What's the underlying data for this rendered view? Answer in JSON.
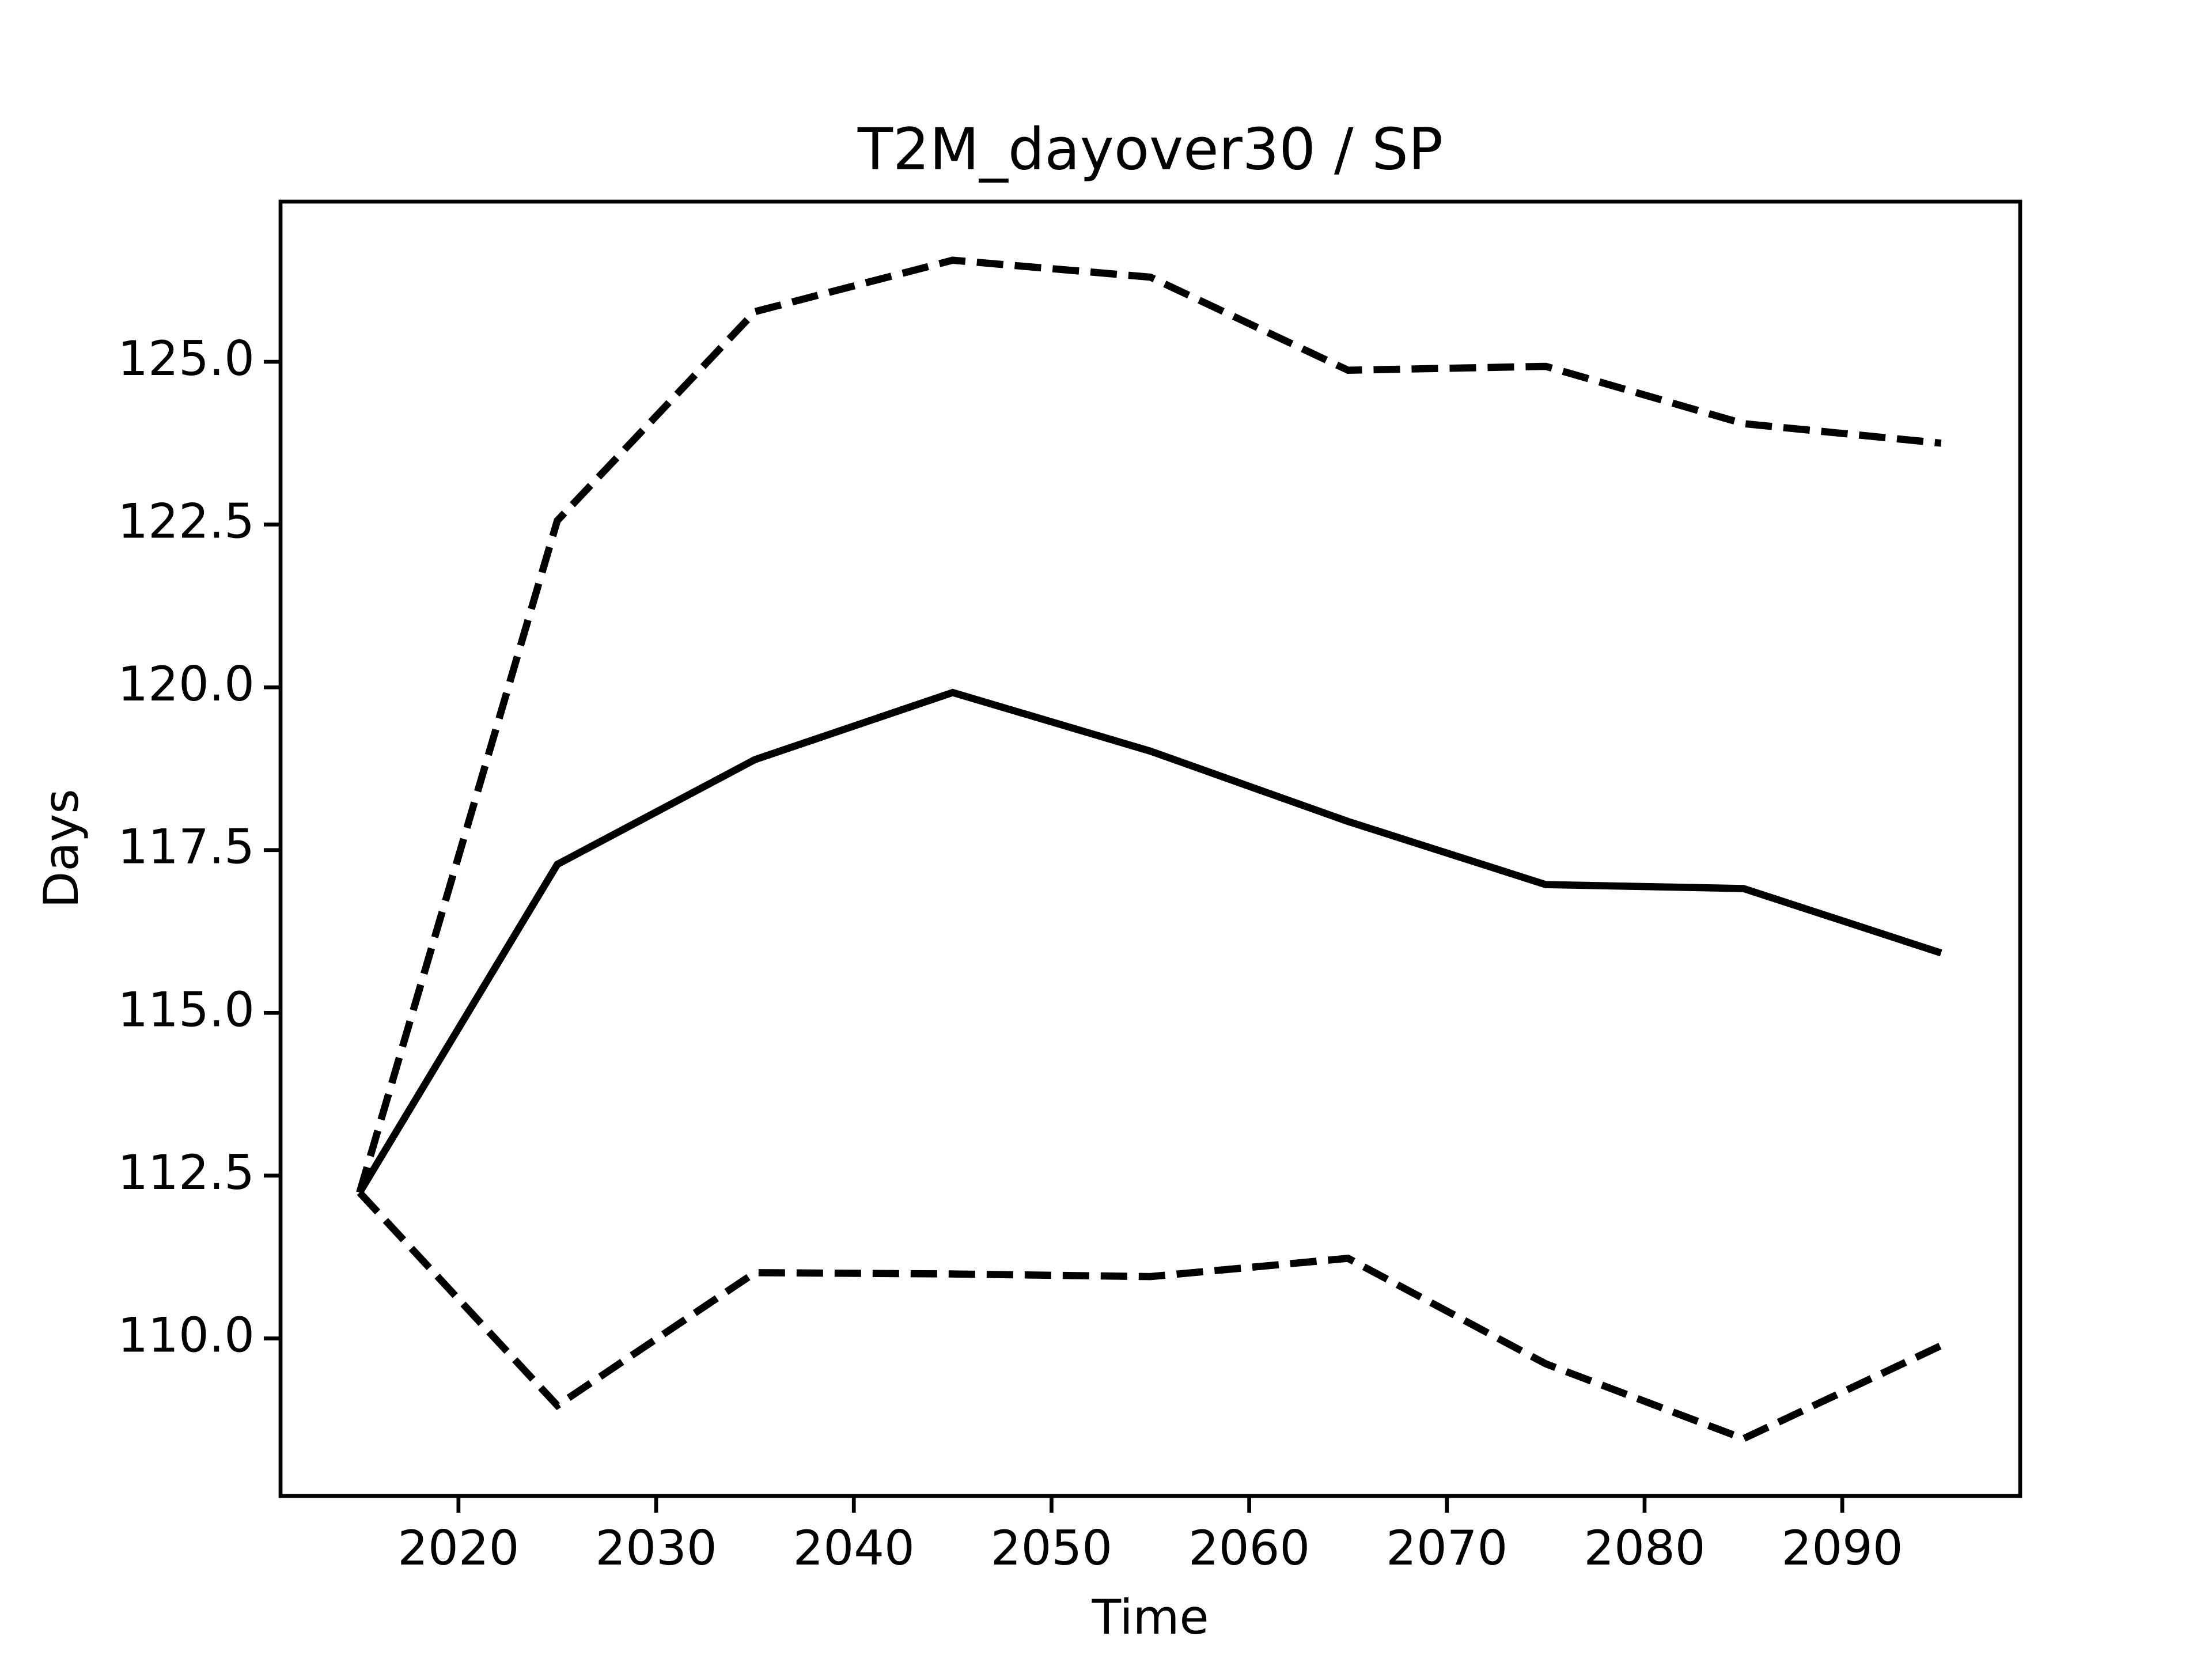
{
  "chart_data": {
    "type": "line",
    "title": "T2M_dayover30 / SP",
    "xlabel": "Time",
    "ylabel": "Days",
    "x": [
      2015,
      2025,
      2035,
      2045,
      2055,
      2065,
      2075,
      2085,
      2095
    ],
    "series": [
      {
        "color": "#000000",
        "linestyle": "solid",
        "values": [
          112.24,
          117.28,
          118.89,
          119.92,
          119.02,
          117.94,
          116.97,
          116.91,
          115.92
        ]
      },
      {
        "color": "#000000",
        "linestyle": "dashed",
        "values": [
          112.24,
          122.56,
          125.77,
          126.56,
          126.3,
          124.87,
          124.93,
          124.05,
          123.75
        ]
      },
      {
        "color": "#000000",
        "linestyle": "dashed",
        "values": [
          112.24,
          108.97,
          111.01,
          110.99,
          110.95,
          111.23,
          109.61,
          108.46,
          109.89
        ]
      }
    ],
    "xlim": [
      2011,
      2099
    ],
    "xticks": [
      2020,
      2030,
      2040,
      2050,
      2060,
      2070,
      2080,
      2090
    ],
    "ylim": [
      107.58,
      127.46
    ],
    "yticks": [
      {
        "value": 110,
        "label": "110.0"
      },
      112.5,
      {
        "value": 115,
        "label": "115.0"
      },
      117.5,
      {
        "value": 120,
        "label": "120.0"
      },
      122.5,
      {
        "value": 125,
        "label": "125.0"
      }
    ],
    "grid": false
  }
}
